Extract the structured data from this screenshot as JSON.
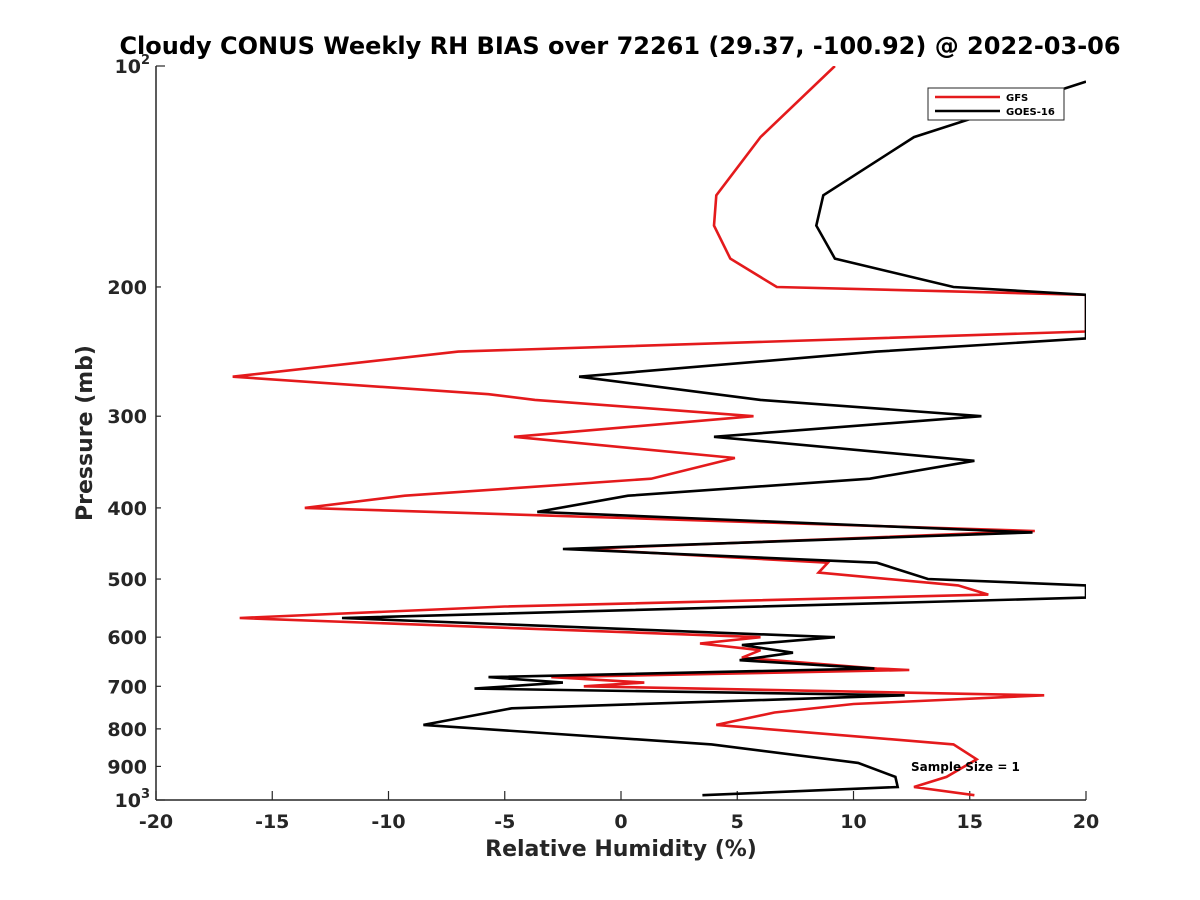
{
  "chart_data": {
    "type": "line",
    "title": "Cloudy CONUS Weekly RH BIAS over 72261 (29.37, -100.92) @ 2022-03-06",
    "xlabel": "Relative Humidity (%)",
    "ylabel": "Pressure (mb)",
    "xlim": [
      -20,
      20
    ],
    "ylim": [
      100,
      1000
    ],
    "yscale": "log",
    "y_reversed": true,
    "grid": false,
    "legend_position": "top-right",
    "x_ticks": [
      "-20",
      "-15",
      "-10",
      "-5",
      "0",
      "5",
      "10",
      "15",
      "20"
    ],
    "x_tick_values": [
      -20,
      -15,
      -10,
      -5,
      0,
      5,
      10,
      15,
      20
    ],
    "y_ticks": [
      {
        "value": 100,
        "base": "10",
        "exp": "2"
      },
      {
        "value": 200,
        "label": "200"
      },
      {
        "value": 300,
        "label": "300"
      },
      {
        "value": 400,
        "label": "400"
      },
      {
        "value": 500,
        "label": "500"
      },
      {
        "value": 600,
        "label": "600"
      },
      {
        "value": 700,
        "label": "700"
      },
      {
        "value": 800,
        "label": "800"
      },
      {
        "value": 900,
        "label": "900"
      },
      {
        "value": 1000,
        "base": "10",
        "exp": "3"
      }
    ],
    "annotation": "Sample Size = 1",
    "series": [
      {
        "name": "GFS",
        "color": "#e41a1c",
        "points": [
          [
            9.2,
            100
          ],
          [
            6.0,
            125
          ],
          [
            4.1,
            150
          ],
          [
            4.0,
            165
          ],
          [
            4.7,
            183
          ],
          [
            6.7,
            200
          ],
          [
            20.0,
            205
          ],
          [
            20.0,
            230
          ],
          [
            -7.0,
            245
          ],
          [
            -16.7,
            265
          ],
          [
            -5.7,
            280
          ],
          [
            -3.7,
            285
          ],
          [
            5.7,
            300
          ],
          [
            -4.6,
            320
          ],
          [
            4.9,
            342
          ],
          [
            1.3,
            365
          ],
          [
            -9.3,
            385
          ],
          [
            -13.6,
            400
          ],
          [
            17.8,
            430
          ],
          [
            -1.7,
            455
          ],
          [
            8.9,
            475
          ],
          [
            8.5,
            490
          ],
          [
            14.5,
            510
          ],
          [
            15.8,
            525
          ],
          [
            -5.0,
            545
          ],
          [
            -16.4,
            565
          ],
          [
            6.0,
            600
          ],
          [
            3.4,
            612
          ],
          [
            6.0,
            625
          ],
          [
            5.2,
            640
          ],
          [
            11.0,
            662
          ],
          [
            12.4,
            665
          ],
          [
            -3.0,
            680
          ],
          [
            1.0,
            692
          ],
          [
            -1.6,
            700
          ],
          [
            18.2,
            720
          ],
          [
            10.0,
            740
          ],
          [
            6.6,
            760
          ],
          [
            4.1,
            790
          ],
          [
            14.3,
            840
          ],
          [
            15.3,
            880
          ],
          [
            14.0,
            930
          ],
          [
            12.6,
            960
          ],
          [
            15.2,
            985
          ]
        ]
      },
      {
        "name": "GOES-16",
        "color": "#000000",
        "points": [
          [
            20.0,
            105
          ],
          [
            12.6,
            125
          ],
          [
            8.7,
            150
          ],
          [
            8.4,
            165
          ],
          [
            9.2,
            183
          ],
          [
            14.3,
            200
          ],
          [
            20.0,
            205
          ],
          [
            20.0,
            235
          ],
          [
            11.0,
            245
          ],
          [
            -1.8,
            265
          ],
          [
            6.0,
            285
          ],
          [
            15.5,
            300
          ],
          [
            4.0,
            320
          ],
          [
            15.2,
            345
          ],
          [
            10.7,
            365
          ],
          [
            0.3,
            385
          ],
          [
            -3.6,
            405
          ],
          [
            17.7,
            432
          ],
          [
            -2.5,
            455
          ],
          [
            11.0,
            475
          ],
          [
            13.2,
            500
          ],
          [
            20.0,
            510
          ],
          [
            20.0,
            530
          ],
          [
            -12.0,
            565
          ],
          [
            9.2,
            600
          ],
          [
            5.2,
            615
          ],
          [
            7.4,
            630
          ],
          [
            5.1,
            645
          ],
          [
            10.9,
            662
          ],
          [
            -5.7,
            680
          ],
          [
            -2.5,
            692
          ],
          [
            -6.3,
            705
          ],
          [
            12.2,
            720
          ],
          [
            -4.7,
            750
          ],
          [
            -8.5,
            790
          ],
          [
            3.9,
            840
          ],
          [
            10.2,
            890
          ],
          [
            11.8,
            930
          ],
          [
            11.9,
            960
          ],
          [
            3.5,
            985
          ]
        ]
      }
    ]
  }
}
